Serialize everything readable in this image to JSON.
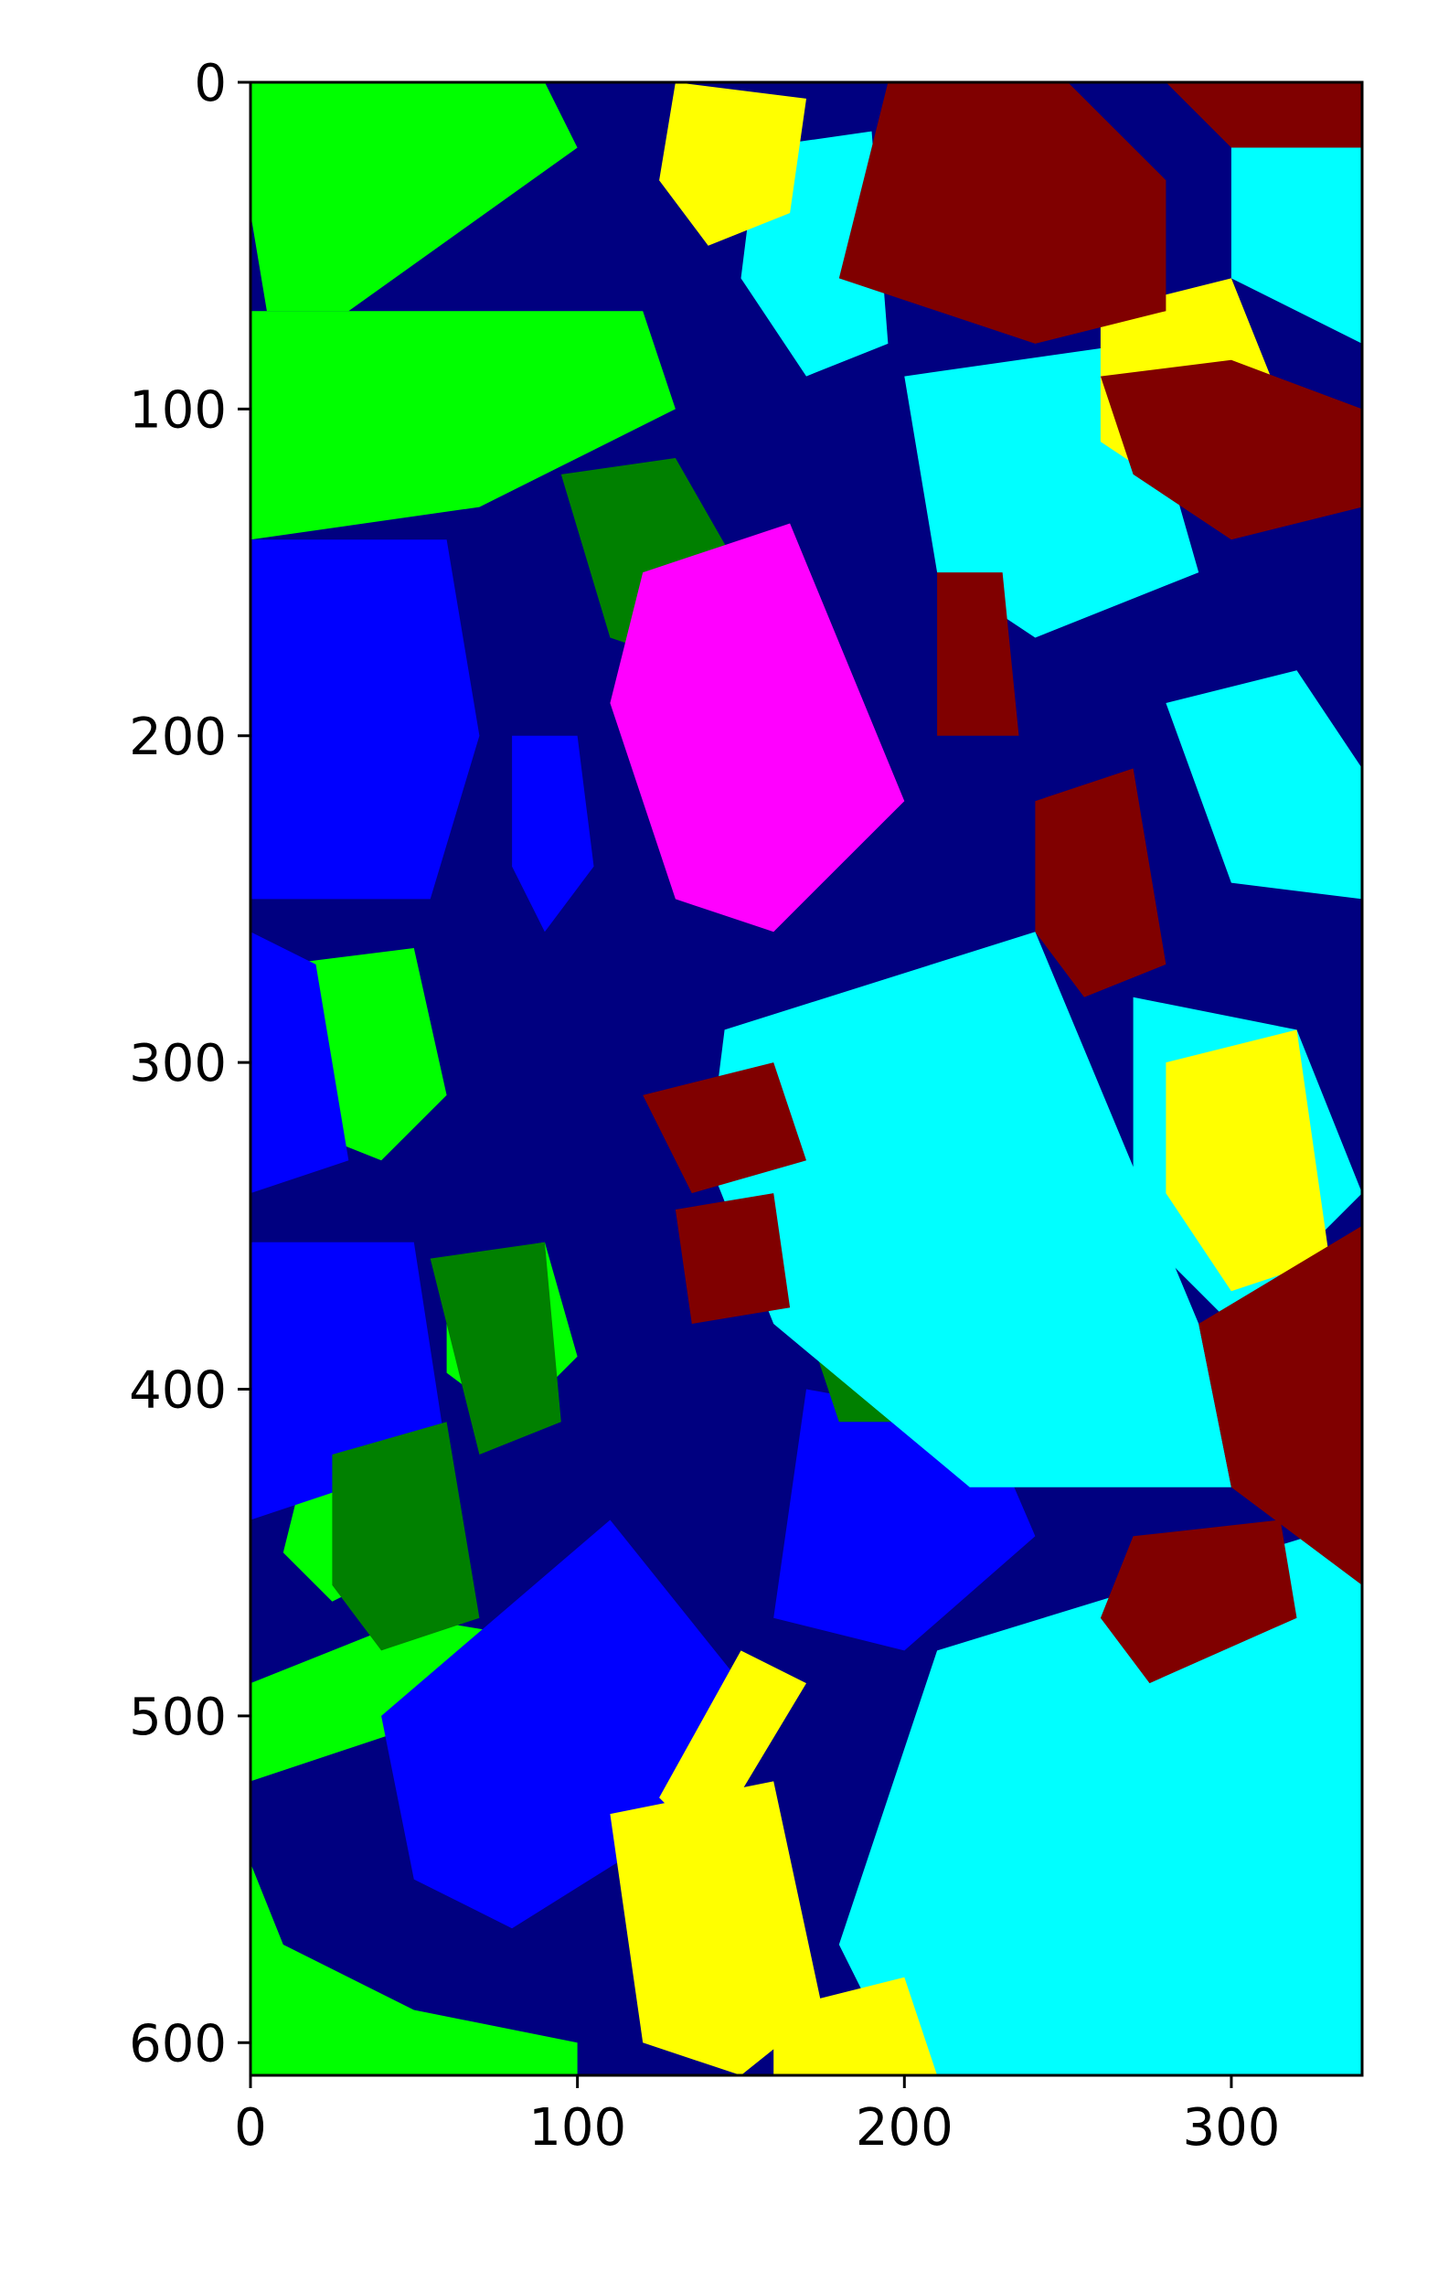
{
  "chart_data": {
    "type": "heatmap",
    "title": "",
    "xlabel": "",
    "ylabel": "",
    "xlim": [
      0,
      340
    ],
    "ylim": [
      0,
      610
    ],
    "y_inverted": true,
    "x_ticks": [
      "0",
      "100",
      "200",
      "300"
    ],
    "y_ticks": [
      "0",
      "100",
      "200",
      "300",
      "400",
      "500",
      "600"
    ],
    "grid": false,
    "legend": "none",
    "palette": {
      "navy": "#000080",
      "blue": "#0000ff",
      "lime": "#00ff00",
      "green": "#008000",
      "cyan": "#00ffff",
      "yellow": "#ffff00",
      "magenta": "#ff00ff",
      "maroon": "#800000"
    },
    "regions": [
      {
        "class": "lime",
        "points": [
          [
            0,
            0
          ],
          [
            90,
            0
          ],
          [
            100,
            20
          ],
          [
            30,
            70
          ],
          [
            5,
            70
          ],
          [
            0,
            40
          ]
        ]
      },
      {
        "class": "lime",
        "points": [
          [
            0,
            70
          ],
          [
            120,
            70
          ],
          [
            130,
            100
          ],
          [
            70,
            130
          ],
          [
            0,
            140
          ]
        ]
      },
      {
        "class": "lime",
        "points": [
          [
            0,
            545
          ],
          [
            10,
            570
          ],
          [
            50,
            590
          ],
          [
            100,
            600
          ],
          [
            100,
            610
          ],
          [
            0,
            610
          ]
        ]
      },
      {
        "class": "lime",
        "points": [
          [
            0,
            490
          ],
          [
            50,
            470
          ],
          [
            80,
            475
          ],
          [
            60,
            500
          ],
          [
            0,
            520
          ]
        ]
      },
      {
        "class": "lime",
        "points": [
          [
            10,
            270
          ],
          [
            50,
            265
          ],
          [
            60,
            310
          ],
          [
            40,
            330
          ],
          [
            15,
            320
          ]
        ]
      },
      {
        "class": "lime",
        "points": [
          [
            60,
            360
          ],
          [
            90,
            355
          ],
          [
            100,
            390
          ],
          [
            80,
            410
          ],
          [
            60,
            395
          ]
        ]
      },
      {
        "class": "lime",
        "points": [
          [
            15,
            430
          ],
          [
            40,
            425
          ],
          [
            45,
            455
          ],
          [
            25,
            465
          ],
          [
            10,
            450
          ]
        ]
      },
      {
        "class": "blue",
        "points": [
          [
            0,
            140
          ],
          [
            60,
            140
          ],
          [
            70,
            200
          ],
          [
            55,
            250
          ],
          [
            0,
            250
          ]
        ]
      },
      {
        "class": "blue",
        "points": [
          [
            0,
            260
          ],
          [
            20,
            270
          ],
          [
            30,
            330
          ],
          [
            0,
            340
          ]
        ]
      },
      {
        "class": "blue",
        "points": [
          [
            0,
            355
          ],
          [
            50,
            355
          ],
          [
            60,
            420
          ],
          [
            0,
            440
          ]
        ]
      },
      {
        "class": "blue",
        "points": [
          [
            40,
            500
          ],
          [
            110,
            440
          ],
          [
            150,
            490
          ],
          [
            120,
            540
          ],
          [
            80,
            565
          ],
          [
            50,
            550
          ]
        ]
      },
      {
        "class": "blue",
        "points": [
          [
            170,
            400
          ],
          [
            225,
            410
          ],
          [
            240,
            445
          ],
          [
            200,
            480
          ],
          [
            160,
            470
          ]
        ]
      },
      {
        "class": "blue",
        "points": [
          [
            80,
            200
          ],
          [
            100,
            200
          ],
          [
            105,
            240
          ],
          [
            90,
            260
          ],
          [
            80,
            240
          ]
        ]
      },
      {
        "class": "green",
        "points": [
          [
            95,
            120
          ],
          [
            130,
            115
          ],
          [
            150,
            150
          ],
          [
            140,
            180
          ],
          [
            110,
            170
          ]
        ]
      },
      {
        "class": "green",
        "points": [
          [
            25,
            420
          ],
          [
            60,
            410
          ],
          [
            70,
            470
          ],
          [
            40,
            480
          ],
          [
            25,
            460
          ]
        ]
      },
      {
        "class": "green",
        "points": [
          [
            55,
            360
          ],
          [
            90,
            355
          ],
          [
            95,
            410
          ],
          [
            70,
            420
          ]
        ]
      },
      {
        "class": "green",
        "points": [
          [
            170,
            380
          ],
          [
            220,
            385
          ],
          [
            215,
            410
          ],
          [
            180,
            410
          ]
        ]
      },
      {
        "class": "magenta",
        "points": [
          [
            120,
            150
          ],
          [
            165,
            135
          ],
          [
            200,
            220
          ],
          [
            160,
            260
          ],
          [
            130,
            250
          ],
          [
            110,
            190
          ]
        ]
      },
      {
        "class": "cyan",
        "points": [
          [
            155,
            20
          ],
          [
            190,
            15
          ],
          [
            195,
            80
          ],
          [
            170,
            90
          ],
          [
            150,
            60
          ]
        ]
      },
      {
        "class": "cyan",
        "points": [
          [
            145,
            290
          ],
          [
            240,
            260
          ],
          [
            290,
            380
          ],
          [
            300,
            430
          ],
          [
            220,
            430
          ],
          [
            160,
            380
          ],
          [
            140,
            330
          ]
        ]
      },
      {
        "class": "cyan",
        "points": [
          [
            210,
            480
          ],
          [
            340,
            440
          ],
          [
            340,
            610
          ],
          [
            200,
            610
          ],
          [
            180,
            570
          ]
        ]
      },
      {
        "class": "cyan",
        "points": [
          [
            200,
            90
          ],
          [
            270,
            80
          ],
          [
            290,
            150
          ],
          [
            240,
            170
          ],
          [
            210,
            150
          ]
        ]
      },
      {
        "class": "cyan",
        "points": [
          [
            300,
            0
          ],
          [
            340,
            0
          ],
          [
            340,
            80
          ],
          [
            300,
            60
          ]
        ]
      },
      {
        "class": "cyan",
        "points": [
          [
            280,
            190
          ],
          [
            320,
            180
          ],
          [
            340,
            210
          ],
          [
            340,
            250
          ],
          [
            300,
            245
          ]
        ]
      },
      {
        "class": "cyan",
        "points": [
          [
            270,
            280
          ],
          [
            320,
            290
          ],
          [
            340,
            340
          ],
          [
            300,
            380
          ],
          [
            270,
            350
          ]
        ]
      },
      {
        "class": "yellow",
        "points": [
          [
            130,
            0
          ],
          [
            170,
            5
          ],
          [
            165,
            40
          ],
          [
            140,
            50
          ],
          [
            125,
            30
          ]
        ]
      },
      {
        "class": "yellow",
        "points": [
          [
            260,
            70
          ],
          [
            300,
            60
          ],
          [
            320,
            110
          ],
          [
            290,
            130
          ],
          [
            260,
            110
          ]
        ]
      },
      {
        "class": "yellow",
        "points": [
          [
            280,
            300
          ],
          [
            320,
            290
          ],
          [
            330,
            360
          ],
          [
            300,
            370
          ],
          [
            280,
            340
          ]
        ]
      },
      {
        "class": "yellow",
        "points": [
          [
            110,
            530
          ],
          [
            160,
            520
          ],
          [
            175,
            590
          ],
          [
            150,
            610
          ],
          [
            120,
            600
          ]
        ]
      },
      {
        "class": "yellow",
        "points": [
          [
            150,
            480
          ],
          [
            170,
            490
          ],
          [
            140,
            540
          ],
          [
            125,
            525
          ]
        ]
      },
      {
        "class": "yellow",
        "points": [
          [
            160,
            590
          ],
          [
            200,
            580
          ],
          [
            210,
            610
          ],
          [
            160,
            610
          ]
        ]
      },
      {
        "class": "maroon",
        "points": [
          [
            195,
            0
          ],
          [
            250,
            0
          ],
          [
            280,
            30
          ],
          [
            280,
            70
          ],
          [
            240,
            80
          ],
          [
            180,
            60
          ]
        ]
      },
      {
        "class": "maroon",
        "points": [
          [
            280,
            0
          ],
          [
            340,
            0
          ],
          [
            340,
            20
          ],
          [
            300,
            20
          ]
        ]
      },
      {
        "class": "maroon",
        "points": [
          [
            120,
            310
          ],
          [
            160,
            300
          ],
          [
            170,
            330
          ],
          [
            135,
            340
          ]
        ]
      },
      {
        "class": "maroon",
        "points": [
          [
            130,
            345
          ],
          [
            160,
            340
          ],
          [
            165,
            375
          ],
          [
            135,
            380
          ]
        ]
      },
      {
        "class": "maroon",
        "points": [
          [
            270,
            445
          ],
          [
            315,
            440
          ],
          [
            320,
            470
          ],
          [
            275,
            490
          ],
          [
            260,
            470
          ]
        ]
      },
      {
        "class": "maroon",
        "points": [
          [
            290,
            380
          ],
          [
            340,
            350
          ],
          [
            340,
            460
          ],
          [
            300,
            430
          ]
        ]
      },
      {
        "class": "maroon",
        "points": [
          [
            240,
            220
          ],
          [
            270,
            210
          ],
          [
            280,
            270
          ],
          [
            255,
            280
          ],
          [
            240,
            260
          ]
        ]
      },
      {
        "class": "maroon",
        "points": [
          [
            210,
            150
          ],
          [
            230,
            150
          ],
          [
            235,
            200
          ],
          [
            210,
            200
          ]
        ]
      },
      {
        "class": "maroon",
        "points": [
          [
            260,
            90
          ],
          [
            300,
            85
          ],
          [
            340,
            100
          ],
          [
            340,
            130
          ],
          [
            300,
            140
          ],
          [
            270,
            120
          ]
        ]
      }
    ]
  }
}
